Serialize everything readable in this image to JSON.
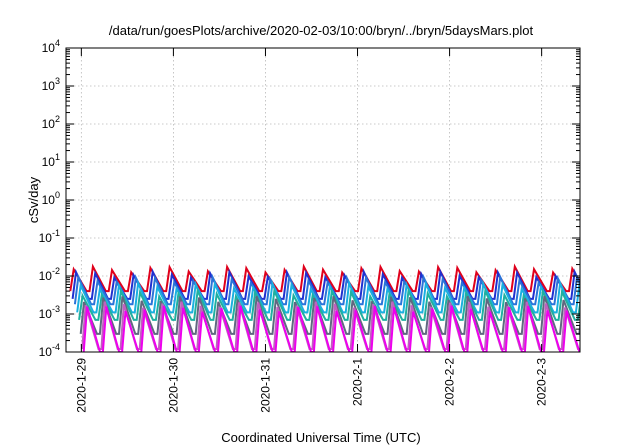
{
  "chart_data": {
    "type": "line",
    "title": "/data/run/goesPlots/archive/2020-02-03/10:00/bryn/../bryn/5daysMars.plot",
    "xlabel": "Coordinated Universal Time (UTC)",
    "ylabel": "cSv/day",
    "yscale": "log",
    "ylim": [
      0.0001,
      10000
    ],
    "xlim": [
      "2020-01-28T20:00",
      "2020-02-03T10:00"
    ],
    "grid": true,
    "x_ticks": [
      {
        "label": "2020-1-29",
        "t": "2020-01-29T00:00"
      },
      {
        "label": "2020-1-30",
        "t": "2020-01-30T00:00"
      },
      {
        "label": "2020-1-31",
        "t": "2020-01-31T00:00"
      },
      {
        "label": "2020-2-1",
        "t": "2020-02-01T00:00"
      },
      {
        "label": "2020-2-2",
        "t": "2020-02-02T00:00"
      },
      {
        "label": "2020-2-3",
        "t": "2020-02-03T00:00"
      }
    ],
    "y_ticks": [
      {
        "base": "10",
        "exp": "-4",
        "value": 0.0001
      },
      {
        "base": "10",
        "exp": "-3",
        "value": 0.001
      },
      {
        "base": "10",
        "exp": "-2",
        "value": 0.01
      },
      {
        "base": "10",
        "exp": "-1",
        "value": 0.1
      },
      {
        "base": "10",
        "exp": "0",
        "value": 1
      },
      {
        "base": "10",
        "exp": "1",
        "value": 10
      },
      {
        "base": "10",
        "exp": "2",
        "value": 100
      },
      {
        "base": "10",
        "exp": "3",
        "value": 1000
      },
      {
        "base": "10",
        "exp": "4",
        "value": 10000
      }
    ],
    "pattern": "sawtooth",
    "cycle_peaks": [
      "2020-01-28T22:00",
      "2020-01-29T03:00",
      "2020-01-29T08:00",
      "2020-01-29T13:00",
      "2020-01-29T18:00",
      "2020-01-29T23:00",
      "2020-01-30T04:00",
      "2020-01-30T09:00",
      "2020-01-30T14:00",
      "2020-01-30T19:00",
      "2020-01-31T00:00",
      "2020-01-31T05:00",
      "2020-01-31T10:00",
      "2020-01-31T15:00",
      "2020-01-31T20:00",
      "2020-02-01T01:00",
      "2020-02-01T06:00",
      "2020-02-01T11:00",
      "2020-02-01T16:00",
      "2020-02-01T21:00",
      "2020-02-02T02:00",
      "2020-02-02T07:00",
      "2020-02-02T12:00",
      "2020-02-02T17:00",
      "2020-02-02T22:00",
      "2020-02-03T03:00",
      "2020-02-03T08:00"
    ],
    "cycle_hours": 5,
    "series": [
      {
        "color": "#e0001b",
        "peak": 0.015,
        "trough": 0.004,
        "offset_hours": 0.0
      },
      {
        "color": "#2030d0",
        "peak": 0.011,
        "trough": 0.0025,
        "offset_hours": 0.6
      },
      {
        "color": "#2a74d8",
        "peak": 0.008,
        "trough": 0.0018,
        "offset_hours": 1.2
      },
      {
        "color": "#1ab0e0",
        "peak": 0.0055,
        "trough": 0.0011,
        "offset_hours": 1.8
      },
      {
        "color": "#20b0a0",
        "peak": 0.0035,
        "trough": 0.0007,
        "offset_hours": 2.3
      },
      {
        "color": "#606880",
        "peak": 0.0025,
        "trough": 0.0003,
        "offset_hours": 2.7
      },
      {
        "color": "#c060c0",
        "peak": 0.0018,
        "trough": 0.00012,
        "offset_hours": 3.1
      },
      {
        "color": "#ee00ee",
        "peak": 0.0014,
        "trough": 0.0001,
        "offset_hours": 3.5
      }
    ]
  }
}
